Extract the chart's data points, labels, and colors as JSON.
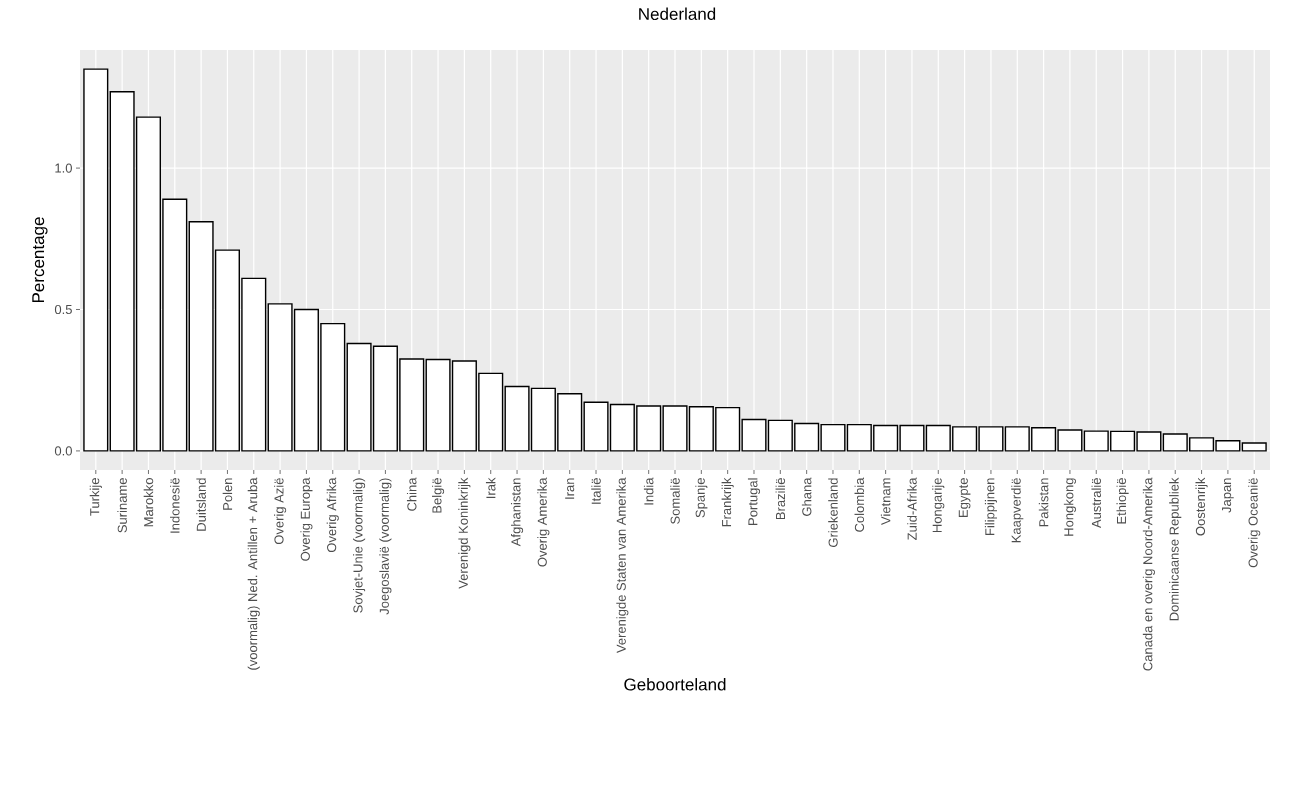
{
  "chart_data": {
    "type": "bar",
    "title": "Nederland",
    "xlabel": "Geboorteland",
    "ylabel": "Percentage",
    "categories": [
      "Turkije",
      "Suriname",
      "Marokko",
      "Indonesië",
      "Duitsland",
      "Polen",
      "(voormalig) Ned. Antillen + Aruba",
      "Overig Azië",
      "Overig Europa",
      "Overig Afrika",
      "Sovjet-Unie (voormalig)",
      "Joegoslavië (voormalig)",
      "China",
      "België",
      "Verenigd Koninkrijk",
      "Irak",
      "Afghanistan",
      "Overig Amerika",
      "Iran",
      "Italië",
      "Verenigde Staten van Amerika",
      "India",
      "Somalië",
      "Spanje",
      "Frankrijk",
      "Portugal",
      "Brazilië",
      "Ghana",
      "Griekenland",
      "Colombia",
      "Vietnam",
      "Zuid-Afrika",
      "Hongarije",
      "Egypte",
      "Filippijnen",
      "Kaapverdië",
      "Pakistan",
      "Hongkong",
      "Australië",
      "Ethiopië",
      "Canada en overig Noord-Amerika",
      "Dominicaanse Republiek",
      "Oostenrijk",
      "Japan",
      "Overig Oceanië"
    ],
    "values": [
      1.35,
      1.27,
      1.18,
      0.89,
      0.81,
      0.71,
      0.61,
      0.52,
      0.5,
      0.45,
      0.38,
      0.37,
      0.325,
      0.323,
      0.318,
      0.274,
      0.228,
      0.221,
      0.202,
      0.172,
      0.164,
      0.159,
      0.159,
      0.156,
      0.153,
      0.111,
      0.108,
      0.097,
      0.093,
      0.093,
      0.09,
      0.09,
      0.09,
      0.085,
      0.085,
      0.085,
      0.082,
      0.074,
      0.07,
      0.069,
      0.067,
      0.06,
      0.046,
      0.036,
      0.028
    ],
    "color": "#ffffff",
    "ylim": [
      -0.0675,
      1.4175
    ],
    "yticks": [
      {
        "value": 0,
        "label": "0.0"
      },
      {
        "value": 0.5,
        "label": "0.5"
      },
      {
        "value": 1,
        "label": "1.0"
      }
    ],
    "grid": true
  }
}
